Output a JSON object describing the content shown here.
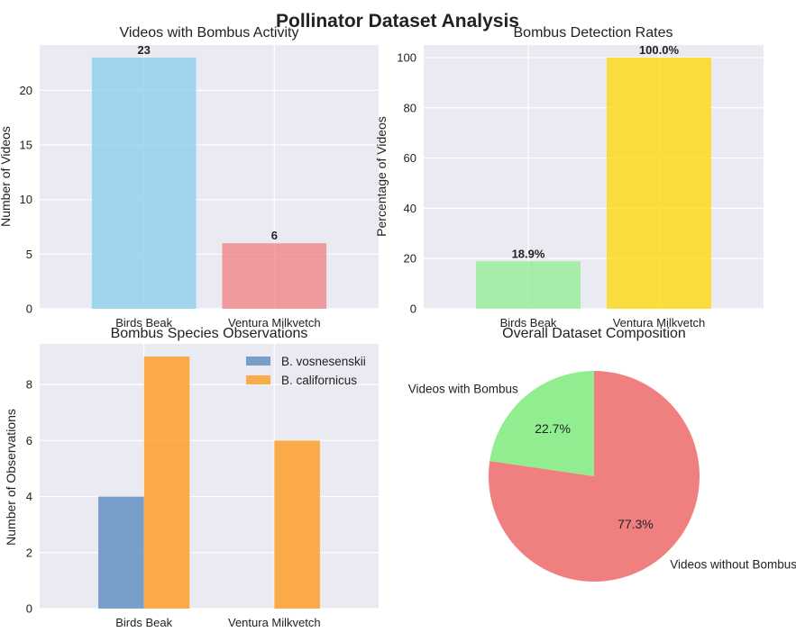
{
  "figure": {
    "title": "Pollinator Dataset Analysis"
  },
  "chart_data": [
    {
      "type": "bar",
      "title": "Videos with Bombus Activity",
      "xlabel": "",
      "ylabel": "Number of Videos",
      "categories": [
        "Birds Beak",
        "Ventura Milkvetch"
      ],
      "values": [
        23,
        6
      ],
      "value_labels": [
        "23",
        "6"
      ],
      "colors": [
        "#87ceeb",
        "#f08080"
      ],
      "ylim": [
        0,
        24.15
      ],
      "yticks": [
        0,
        5,
        10,
        15,
        20
      ],
      "grid": true
    },
    {
      "type": "bar",
      "title": "Bombus Detection Rates",
      "xlabel": "",
      "ylabel": "Percentage of Videos",
      "categories": [
        "Birds Beak",
        "Ventura Milkvetch"
      ],
      "values": [
        18.9,
        100.0
      ],
      "value_labels": [
        "18.9%",
        "100.0%"
      ],
      "colors": [
        "#90ee90",
        "#ffd700"
      ],
      "ylim": [
        0,
        105
      ],
      "yticks": [
        0,
        20,
        40,
        60,
        80,
        100
      ],
      "grid": true
    },
    {
      "type": "bar",
      "title": "Bombus Species Observations",
      "xlabel": "",
      "ylabel": "Number of Observations",
      "categories": [
        "Birds Beak",
        "Ventura Milkvetch"
      ],
      "series": [
        {
          "name": "B. vosnesenskii",
          "values": [
            4,
            0
          ],
          "color": "#5b8bbf"
        },
        {
          "name": "B. californicus",
          "values": [
            9,
            6
          ],
          "color": "#ff9a1f"
        }
      ],
      "ylim": [
        0,
        9.45
      ],
      "yticks": [
        0,
        2,
        4,
        6,
        8
      ],
      "legend": "top-right",
      "grid": true
    },
    {
      "type": "pie",
      "title": "Overall Dataset Composition",
      "labels": [
        "Videos with Bombus",
        "Videos without Bombus"
      ],
      "values": [
        22.7,
        77.3
      ],
      "pct_labels": [
        "22.7%",
        "77.3%"
      ],
      "colors": [
        "#90ee90",
        "#f08080"
      ],
      "startangle": 90
    }
  ]
}
